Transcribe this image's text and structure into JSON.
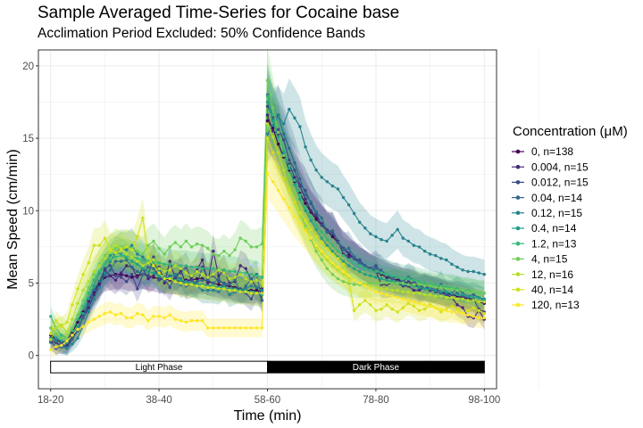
{
  "chart_data": {
    "type": "line",
    "title": "Sample Averaged Time-Series for Cocaine base",
    "subtitle": "Acclimation Period Excluded: 50% Confidence Bands",
    "xlabel": "Time (min)",
    "ylabel": "Mean Speed (cm/min)",
    "ylim": [
      -2.3,
      21.1
    ],
    "yticks": [
      0,
      5,
      10,
      15,
      20
    ],
    "x_tick_labels": [
      "18-20",
      "38-40",
      "58-60",
      "78-80",
      "98-100"
    ],
    "x_tick_minutes": [
      19,
      39,
      59,
      79,
      99
    ],
    "x": [
      19,
      20,
      21,
      22,
      23,
      24,
      25,
      26,
      27,
      28,
      29,
      30,
      31,
      32,
      33,
      34,
      35,
      36,
      37,
      38,
      39,
      40,
      41,
      42,
      43,
      44,
      45,
      46,
      47,
      48,
      49,
      50,
      51,
      52,
      53,
      54,
      55,
      56,
      57,
      58,
      59,
      60,
      61,
      62,
      63,
      64,
      65,
      66,
      67,
      68,
      69,
      70,
      71,
      72,
      73,
      74,
      75,
      76,
      77,
      78,
      79,
      80,
      81,
      82,
      83,
      84,
      85,
      86,
      87,
      88,
      89,
      90,
      91,
      92,
      93,
      94,
      95,
      96,
      97,
      98,
      99
    ],
    "phases": [
      {
        "label": "Light Phase",
        "x_start": 19,
        "x_end": 59,
        "fill": "#ffffff",
        "text_color": "#000000"
      },
      {
        "label": "Dark Phase",
        "x_start": 59,
        "x_end": 99,
        "fill": "#000000",
        "text_color": "#ffffff"
      }
    ],
    "band": "50% confidence band (shaded around each series)",
    "legend": {
      "title": "Concentration (μM)",
      "position": "right"
    },
    "grid": true,
    "series": [
      {
        "name": "0, n=138",
        "color": "#440154",
        "values": [
          1.4,
          1.1,
          0.9,
          1.0,
          1.6,
          2.3,
          3.0,
          3.8,
          4.4,
          5.0,
          5.4,
          5.5,
          5.6,
          5.6,
          5.5,
          5.4,
          5.5,
          5.6,
          5.5,
          5.4,
          5.3,
          5.3,
          5.2,
          5.2,
          5.1,
          5.2,
          5.2,
          5.3,
          5.3,
          5.1,
          5.0,
          4.9,
          4.8,
          4.8,
          4.7,
          4.6,
          4.5,
          4.5,
          4.5,
          4.4,
          16.2,
          15.7,
          14.6,
          13.7,
          12.8,
          12.0,
          11.2,
          10.5,
          9.9,
          9.4,
          9.0,
          8.6,
          8.2,
          7.8,
          7.4,
          7.0,
          6.7,
          6.4,
          6.2,
          6.0,
          5.8,
          5.6,
          5.4,
          5.3,
          5.2,
          5.1,
          5.0,
          4.9,
          4.8,
          4.7,
          4.6,
          4.5,
          4.4,
          4.3,
          4.2,
          4.1,
          4.0,
          3.9,
          3.8,
          3.7,
          3.6
        ]
      },
      {
        "name": "0.004, n=15",
        "color": "#482878",
        "values": [
          1.0,
          0.9,
          0.6,
          0.7,
          1.3,
          1.8,
          2.6,
          3.3,
          4.2,
          4.8,
          5.9,
          5.5,
          5.2,
          5.7,
          6.2,
          6.1,
          5.4,
          6.0,
          5.3,
          5.5,
          6.1,
          5.0,
          6.5,
          5.3,
          5.9,
          4.9,
          5.4,
          5.9,
          6.6,
          5.0,
          7.2,
          5.5,
          5.9,
          5.0,
          5.1,
          6.2,
          6.0,
          5.2,
          4.7,
          4.6,
          16.6,
          15.5,
          15.3,
          14.0,
          13.2,
          12.3,
          11.7,
          10.8,
          10.0,
          9.6,
          9.1,
          8.6,
          8.6,
          7.9,
          7.0,
          6.8,
          6.8,
          6.4,
          6.2,
          5.9,
          5.8,
          4.9,
          4.9,
          5.0,
          5.0,
          4.8,
          4.8,
          4.5,
          4.5,
          4.7,
          4.5,
          4.6,
          4.4,
          4.2,
          4.0,
          3.5,
          3.3,
          2.7,
          2.6,
          3.1,
          2.5
        ]
      },
      {
        "name": "0.012, n=15",
        "color": "#3e4989",
        "values": [
          1.1,
          0.5,
          0.8,
          0.6,
          1.2,
          1.7,
          2.7,
          3.6,
          4.5,
          5.1,
          6.0,
          6.2,
          5.5,
          5.4,
          5.1,
          5.6,
          4.6,
          5.6,
          5.5,
          6.8,
          5.2,
          5.3,
          4.7,
          5.6,
          5.7,
          6.1,
          5.2,
          4.9,
          6.1,
          5.4,
          5.5,
          5.1,
          5.0,
          4.9,
          4.5,
          4.6,
          4.3,
          3.9,
          4.7,
          3.8,
          17.2,
          16.5,
          15.6,
          14.9,
          13.5,
          12.8,
          11.8,
          11.4,
          10.5,
          9.8,
          9.0,
          8.7,
          8.4,
          7.8,
          7.4,
          7.1,
          6.7,
          6.6,
          6.2,
          6.0,
          6.2,
          5.7,
          5.6,
          5.4,
          5.4,
          5.0,
          5.1,
          5.0,
          4.6,
          4.7,
          4.6,
          4.4,
          4.3,
          4.2,
          4.2,
          4.3,
          4.1,
          4.0,
          3.9,
          3.2,
          3.0
        ]
      },
      {
        "name": "0.04, n=14",
        "color": "#31688e",
        "values": [
          0.9,
          0.6,
          0.6,
          0.5,
          1.1,
          1.7,
          2.6,
          3.5,
          4.5,
          5.1,
          5.5,
          5.9,
          6.5,
          6.5,
          6.6,
          6.1,
          5.8,
          5.6,
          6.1,
          6.0,
          5.4,
          5.2,
          5.5,
          5.5,
          5.3,
          4.8,
          4.9,
          5.1,
          5.2,
          5.2,
          5.0,
          5.3,
          4.9,
          4.9,
          5.2,
          4.4,
          4.8,
          5.3,
          5.6,
          3.8,
          18.0,
          16.3,
          16.6,
          15.3,
          14.3,
          13.3,
          12.2,
          11.1,
          10.6,
          9.9,
          9.5,
          8.5,
          8.6,
          7.8,
          7.3,
          7.4,
          6.8,
          6.4,
          6.2,
          5.9,
          6.0,
          5.9,
          5.5,
          5.3,
          5.1,
          5.1,
          5.4,
          5.2,
          4.7,
          4.8,
          4.7,
          4.5,
          4.9,
          4.3,
          4.3,
          4.6,
          4.3,
          4.1,
          4.2,
          4.0,
          3.8
        ]
      },
      {
        "name": "0.12, n=15",
        "color": "#26828e",
        "values": [
          1.2,
          1.0,
          0.7,
          0.5,
          0.8,
          1.2,
          2.0,
          3.0,
          3.9,
          4.7,
          5.7,
          6.5,
          7.1,
          7.4,
          7.3,
          7.6,
          7.0,
          6.8,
          6.4,
          6.6,
          5.9,
          5.8,
          5.4,
          5.6,
          4.9,
          5.1,
          5.0,
          4.8,
          4.5,
          4.5,
          4.5,
          4.4,
          4.8,
          4.2,
          4.4,
          4.5,
          4.6,
          4.8,
          4.7,
          4.5,
          15.3,
          15.9,
          16.5,
          16.0,
          17.0,
          16.4,
          15.8,
          14.4,
          13.5,
          12.8,
          12.3,
          12.0,
          11.7,
          11.5,
          10.9,
          10.4,
          9.8,
          9.2,
          8.8,
          8.4,
          8.2,
          8.0,
          7.9,
          8.3,
          8.7,
          8.1,
          7.9,
          7.6,
          7.5,
          7.2,
          7.0,
          6.9,
          6.7,
          6.6,
          6.3,
          6.1,
          5.9,
          5.8,
          5.8,
          5.7,
          5.6
        ]
      },
      {
        "name": "0.4, n=14",
        "color": "#1f9e89",
        "values": [
          1.5,
          1.2,
          1.0,
          0.9,
          1.4,
          2.0,
          2.9,
          3.9,
          4.8,
          5.7,
          6.3,
          6.9,
          7.1,
          7.0,
          6.7,
          6.5,
          6.3,
          6.0,
          5.8,
          5.7,
          5.5,
          5.4,
          5.3,
          5.2,
          5.2,
          5.1,
          5.0,
          4.9,
          4.9,
          4.8,
          4.8,
          4.7,
          4.7,
          4.6,
          4.6,
          4.5,
          4.5,
          4.4,
          4.3,
          4.2,
          17.5,
          16.2,
          15.1,
          14.0,
          12.9,
          11.8,
          10.8,
          10.0,
          9.3,
          8.7,
          8.1,
          7.6,
          7.2,
          6.8,
          6.5,
          6.2,
          6.0,
          5.8,
          5.6,
          5.5,
          5.4,
          5.3,
          5.2,
          5.1,
          5.0,
          4.9,
          4.9,
          4.8,
          4.7,
          4.6,
          4.6,
          4.5,
          4.4,
          4.4,
          4.3,
          4.2,
          4.2,
          4.1,
          4.0,
          4.0,
          3.9
        ]
      },
      {
        "name": "1.2, n=13",
        "color": "#35b779",
        "values": [
          2.7,
          1.9,
          1.4,
          1.2,
          1.7,
          2.5,
          3.4,
          4.3,
          5.2,
          5.8,
          6.3,
          6.6,
          6.8,
          6.9,
          6.9,
          6.8,
          6.7,
          6.6,
          6.5,
          6.4,
          6.4,
          6.3,
          6.3,
          6.2,
          6.2,
          6.2,
          6.1,
          6.1,
          6.0,
          6.0,
          6.0,
          5.9,
          5.9,
          5.8,
          5.8,
          5.7,
          5.7,
          5.6,
          5.5,
          5.4,
          17.9,
          16.6,
          15.4,
          14.2,
          13.1,
          12.1,
          11.1,
          10.3,
          9.6,
          9.0,
          8.5,
          8.0,
          7.6,
          7.2,
          6.9,
          6.6,
          6.4,
          6.2,
          6.0,
          5.9,
          5.8,
          5.7,
          5.6,
          5.5,
          5.4,
          5.3,
          5.3,
          5.2,
          5.1,
          5.0,
          4.9,
          4.9,
          4.8,
          4.7,
          4.7,
          4.6,
          4.5,
          4.5,
          4.4,
          4.3,
          4.3
        ]
      },
      {
        "name": "4, n=15",
        "color": "#6ece58",
        "values": [
          1.9,
          1.5,
          1.2,
          1.2,
          1.9,
          2.8,
          3.8,
          4.7,
          5.6,
          6.3,
          6.9,
          7.2,
          7.4,
          7.5,
          7.5,
          7.4,
          7.2,
          7.0,
          7.6,
          7.9,
          7.4,
          7.0,
          7.5,
          7.8,
          7.5,
          7.9,
          7.5,
          7.7,
          7.6,
          7.4,
          7.0,
          6.9,
          7.2,
          6.9,
          7.3,
          8.1,
          7.9,
          7.5,
          7.5,
          7.7,
          19.0,
          17.1,
          15.4,
          13.8,
          12.4,
          11.2,
          10.0,
          8.9,
          8.0,
          7.2,
          6.6,
          6.0,
          5.6,
          5.3,
          5.1,
          5.0,
          4.9,
          4.9,
          4.9,
          5.0,
          5.0,
          5.0,
          5.0,
          5.0,
          5.0,
          5.0,
          4.9,
          4.9,
          4.9,
          4.8,
          4.8,
          4.7,
          4.7,
          4.6,
          4.6,
          4.5,
          4.5,
          4.4,
          4.4,
          4.3,
          4.3
        ]
      },
      {
        "name": "12, n=16",
        "color": "#b5de2b",
        "values": [
          1.1,
          1.9,
          2.1,
          1.6,
          2.5,
          3.6,
          4.5,
          5.1,
          5.8,
          6.2,
          6.7,
          7.2,
          7.6,
          7.4,
          7.0,
          6.8,
          6.5,
          6.2,
          6.4,
          6.6,
          6.0,
          5.8,
          5.9,
          6.2,
          6.0,
          5.7,
          5.5,
          5.8,
          5.6,
          5.4,
          5.6,
          5.9,
          5.7,
          5.3,
          5.4,
          5.6,
          5.3,
          5.1,
          5.2,
          5.0,
          16.0,
          15.1,
          14.0,
          12.8,
          11.6,
          10.5,
          9.6,
          8.8,
          8.1,
          7.5,
          7.0,
          6.6,
          6.2,
          5.9,
          5.6,
          5.4,
          5.2,
          5.0,
          4.9,
          4.8,
          4.7,
          4.6,
          4.6,
          4.5,
          4.5,
          4.4,
          4.4,
          4.3,
          4.3,
          4.2,
          4.2,
          4.1,
          4.1,
          4.0,
          4.0,
          3.9,
          3.9,
          3.8,
          3.8,
          3.7,
          3.7
        ]
      },
      {
        "name": "40, n=14",
        "color": "#d0e11c",
        "values": [
          1.5,
          2.4,
          2.0,
          2.3,
          3.5,
          4.6,
          5.6,
          6.4,
          7.6,
          7.6,
          8.1,
          7.3,
          7.1,
          7.3,
          7.5,
          7.3,
          8.2,
          9.5,
          6.8,
          6.2,
          5.7,
          5.3,
          5.3,
          5.1,
          5.0,
          4.9,
          4.9,
          4.8,
          4.8,
          4.7,
          4.7,
          4.6,
          4.6,
          4.5,
          4.5,
          4.4,
          4.4,
          4.3,
          4.3,
          4.3,
          15.0,
          14.0,
          13.0,
          12.2,
          11.4,
          10.6,
          9.9,
          9.3,
          8.7,
          8.2,
          7.8,
          7.4,
          7.0,
          6.7,
          6.3,
          5.1,
          3.1,
          3.5,
          3.8,
          3.5,
          3.1,
          3.2,
          3.5,
          3.2,
          3.0,
          3.3,
          3.6,
          3.4,
          3.1,
          3.2,
          3.5,
          3.3,
          3.0,
          3.2,
          3.4,
          3.2,
          2.9,
          3.1,
          3.3,
          3.1,
          2.9
        ]
      },
      {
        "name": "120, n=13",
        "color": "#fde725",
        "values": [
          0.4,
          0.6,
          0.7,
          1.0,
          1.4,
          1.8,
          2.0,
          2.3,
          2.5,
          2.7,
          2.9,
          3.0,
          2.8,
          2.9,
          2.6,
          2.6,
          2.9,
          2.8,
          2.4,
          2.7,
          2.7,
          2.6,
          2.8,
          2.5,
          2.4,
          2.3,
          2.4,
          2.4,
          2.4,
          1.9,
          1.9,
          1.9,
          1.9,
          1.9,
          1.9,
          1.9,
          1.9,
          1.9,
          1.9,
          1.9,
          12.6,
          12.0,
          11.4,
          10.8,
          10.2,
          9.6,
          9.1,
          8.6,
          8.1,
          7.6,
          7.2,
          6.8,
          6.4,
          6.1,
          5.8,
          5.5,
          5.2,
          5.0,
          4.8,
          4.6,
          4.4,
          4.3,
          4.2,
          4.1,
          4.0,
          3.9,
          3.8,
          3.7,
          3.6,
          3.5,
          3.4,
          3.3,
          3.2,
          3.1,
          3.0,
          3.0,
          2.9,
          2.8,
          2.7,
          2.6,
          2.6
        ]
      }
    ]
  }
}
